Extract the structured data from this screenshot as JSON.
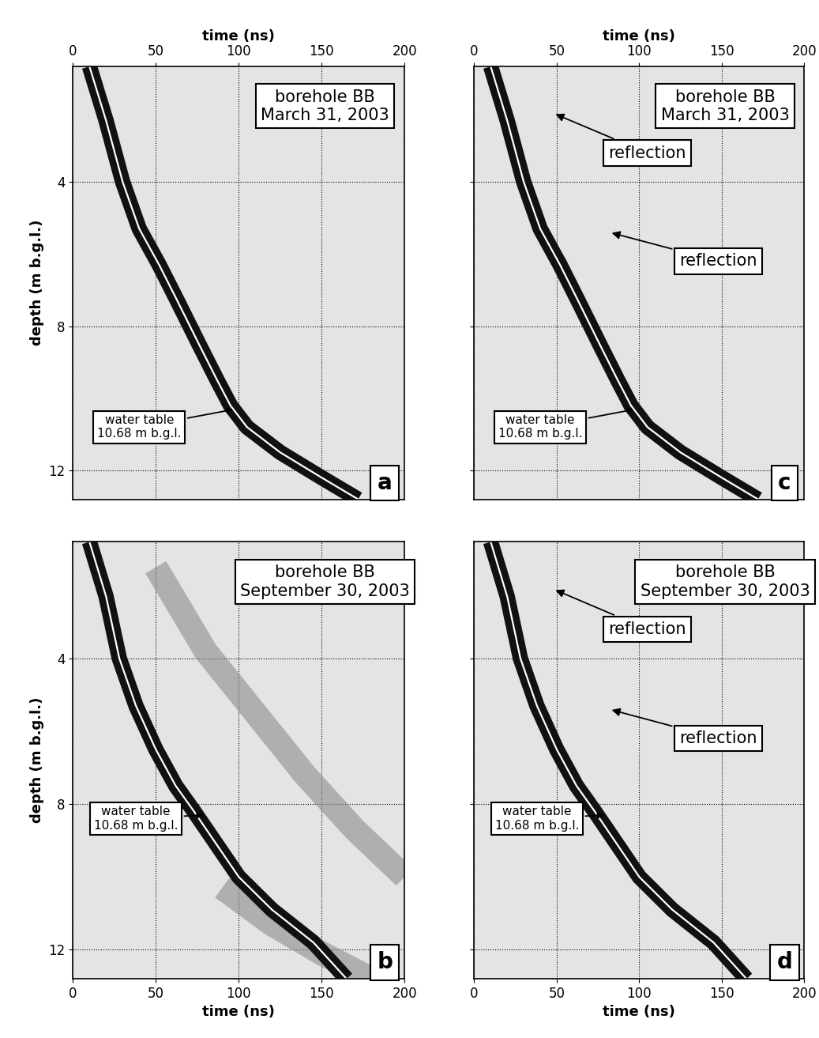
{
  "chart_data": [
    {
      "type": "line",
      "xlabel": "time (ns)",
      "ylabel": "depth (m b.g.l.)",
      "xlim": [
        0,
        200
      ],
      "ylim": [
        12.8,
        0.8
      ],
      "xticks": [
        0,
        50,
        100,
        150,
        200
      ],
      "yticks": [
        4,
        8,
        12
      ],
      "grid": true,
      "tick_labels": true,
      "series": [
        {
          "color": "#111111",
          "x": [
            10,
            20,
            30,
            40,
            52,
            63,
            76,
            87,
            95,
            105,
            125,
            150,
            172
          ],
          "values": [
            0.8,
            2.3,
            4,
            5.3,
            6.3,
            7.3,
            8.5,
            9.5,
            10.2,
            10.8,
            11.5,
            12.2,
            12.8
          ]
        }
      ],
      "annotations": [
        "borehole BB\nMarch 31, 2003",
        "water table\n10.68 m b.g.l.",
        "a"
      ]
    },
    {
      "type": "line",
      "xlabel": "time (ns)",
      "ylabel": "depth (m b.g.l.)",
      "xlim": [
        0,
        200
      ],
      "ylim": [
        12.8,
        0.8
      ],
      "xticks": [
        0,
        50,
        100,
        150,
        200
      ],
      "yticks": [
        4,
        8,
        12
      ],
      "grid": true,
      "tick_labels": true,
      "series": [
        {
          "color": "#8c8c8c",
          "x": [
            50,
            80,
            110,
            140,
            170,
            200
          ],
          "values": [
            1.5,
            3.8,
            5.5,
            7.2,
            8.7,
            10.0
          ]
        },
        {
          "color": "#8c8c8c",
          "x": [
            90,
            120,
            150,
            180
          ],
          "values": [
            10.3,
            11.3,
            12.1,
            12.8
          ]
        },
        {
          "color": "#111111",
          "x": [
            10,
            20,
            28,
            38,
            50,
            62,
            73,
            85,
            100,
            120,
            145,
            165
          ],
          "values": [
            0.8,
            2.3,
            4,
            5.3,
            6.5,
            7.5,
            8.2,
            9,
            10,
            10.9,
            11.8,
            12.8
          ]
        }
      ],
      "annotations": [
        "borehole BB\nSeptember 30, 2003",
        "water table\n10.68 m b.g.l.",
        "b"
      ]
    },
    {
      "type": "line",
      "xlabel": "time (ns)",
      "xlim": [
        0,
        200
      ],
      "ylim": [
        12.8,
        0.8
      ],
      "xticks": [
        0,
        50,
        100,
        150,
        200
      ],
      "yticks": [
        4,
        8,
        12
      ],
      "grid": true,
      "tick_labels": "x",
      "series": [
        {
          "color": "#111111",
          "x": [
            10,
            20,
            30,
            40,
            52,
            63,
            76,
            87,
            95,
            105,
            125,
            150,
            172
          ],
          "values": [
            0.8,
            2.3,
            4,
            5.3,
            6.3,
            7.3,
            8.5,
            9.5,
            10.2,
            10.8,
            11.5,
            12.2,
            12.8
          ]
        }
      ],
      "annotations": [
        "borehole BB\nMarch 31, 2003",
        "reflection",
        "reflection",
        "water table\n10.68 m b.g.l.",
        "c"
      ]
    },
    {
      "type": "line",
      "xlabel": "time (ns)",
      "xlim": [
        0,
        200
      ],
      "ylim": [
        12.8,
        0.8
      ],
      "xticks": [
        0,
        50,
        100,
        150,
        200
      ],
      "yticks": [
        4,
        8,
        12
      ],
      "grid": true,
      "tick_labels": "x",
      "series": [
        {
          "color": "#111111",
          "x": [
            10,
            20,
            28,
            38,
            50,
            62,
            73,
            85,
            100,
            120,
            145,
            165
          ],
          "values": [
            0.8,
            2.3,
            4,
            5.3,
            6.5,
            7.5,
            8.2,
            9,
            10,
            10.9,
            11.8,
            12.8
          ]
        }
      ],
      "annotations": [
        "borehole BB\nSeptember 30, 2003",
        "reflection",
        "reflection",
        "water table\n10.68 m b.g.l.",
        "d"
      ]
    }
  ]
}
